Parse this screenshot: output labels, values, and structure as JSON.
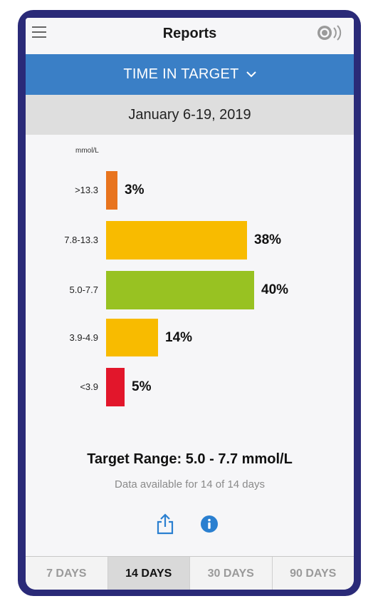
{
  "header": {
    "title": "Reports"
  },
  "banner": {
    "label": "TIME IN TARGET"
  },
  "date_range": "January 6-19, 2019",
  "chart": {
    "unit": "mmol/L",
    "rows": [
      {
        "label": ">13.3",
        "value": 3,
        "display": "3%",
        "color": "#e8741e"
      },
      {
        "label": "7.8-13.3",
        "value": 38,
        "display": "38%",
        "color": "#f8bb00"
      },
      {
        "label": "5.0-7.7",
        "value": 40,
        "display": "40%",
        "color": "#98c222"
      },
      {
        "label": "3.9-4.9",
        "value": 14,
        "display": "14%",
        "color": "#f8bb00"
      },
      {
        "label": "<3.9",
        "value": 5,
        "display": "5%",
        "color": "#e2162b"
      }
    ]
  },
  "chart_data": {
    "type": "bar",
    "orientation": "horizontal",
    "categories": [
      ">13.3",
      "7.8-13.3",
      "5.0-7.7",
      "3.9-4.9",
      "<3.9"
    ],
    "values": [
      3,
      38,
      40,
      14,
      5
    ],
    "xlabel": "",
    "ylabel": "mmol/L"
  },
  "target": {
    "text": "Target Range: 5.0 - 7.7 mmol/L"
  },
  "availability": "Data available for 14 of 14 days",
  "tabs": [
    {
      "label": "7 DAYS",
      "active": false
    },
    {
      "label": "14 DAYS",
      "active": true
    },
    {
      "label": "30 DAYS",
      "active": false
    },
    {
      "label": "90 DAYS",
      "active": false
    }
  ],
  "colors": {
    "accent": "#3a7fc6",
    "frame": "#2a2a78",
    "info": "#2a7fd0"
  }
}
